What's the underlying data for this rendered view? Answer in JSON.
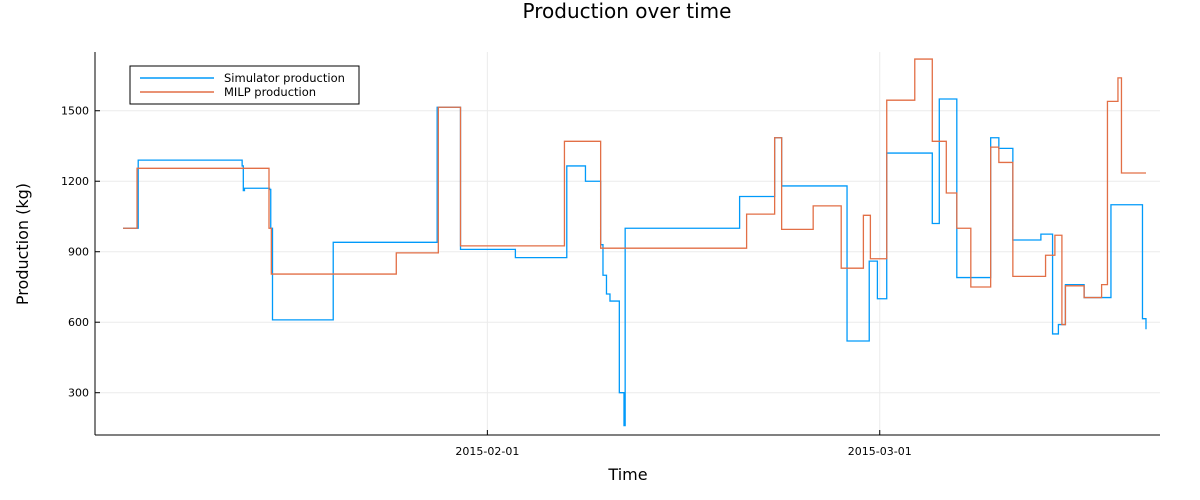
{
  "chart_data": {
    "type": "line",
    "title": "Production over time",
    "xlabel": "Time",
    "ylabel": "Production (kg)",
    "x_ticks": [
      {
        "date": "2015-02-01",
        "label": "2015-02-01"
      },
      {
        "date": "2015-03-01",
        "label": "2015-03-01"
      }
    ],
    "y_ticks": [
      300,
      600,
      900,
      1200,
      1500
    ],
    "xlim": [
      "2015-01-04",
      "2015-03-21"
    ],
    "ylim": [
      120,
      1750
    ],
    "grid": true,
    "legend": "top-left",
    "series": [
      {
        "name": "Simulator production",
        "color": "#009AFA",
        "step": true,
        "points": [
          [
            "2015-01-06T00:00",
            1000
          ],
          [
            "2015-01-07T02:00",
            1290
          ],
          [
            "2015-01-14T12:00",
            1265
          ],
          [
            "2015-01-14T14:00",
            1160
          ],
          [
            "2015-01-14T16:00",
            1170
          ],
          [
            "2015-01-16T11:00",
            1165
          ],
          [
            "2015-01-16T13:00",
            1000
          ],
          [
            "2015-01-16T16:00",
            610
          ],
          [
            "2015-01-21T00:00",
            940
          ],
          [
            "2015-01-28T10:00",
            1515
          ],
          [
            "2015-01-30T02:00",
            910
          ],
          [
            "2015-02-03T00:00",
            875
          ],
          [
            "2015-02-06T16:00",
            1265
          ],
          [
            "2015-02-08T00:00",
            1200
          ],
          [
            "2015-02-09T02:00",
            930
          ],
          [
            "2015-02-09T06:00",
            800
          ],
          [
            "2015-02-09T12:00",
            720
          ],
          [
            "2015-02-09T18:00",
            690
          ],
          [
            "2015-02-10T10:00",
            300
          ],
          [
            "2015-02-10T18:00",
            160
          ],
          [
            "2015-02-10T20:00",
            1000
          ],
          [
            "2015-02-19T00:00",
            1135
          ],
          [
            "2015-02-21T12:00",
            1385
          ],
          [
            "2015-02-22T00:00",
            1180
          ],
          [
            "2015-02-26T16:00",
            520
          ],
          [
            "2015-02-28T06:00",
            860
          ],
          [
            "2015-02-28T20:00",
            700
          ],
          [
            "2015-03-01T12:00",
            1320
          ],
          [
            "2015-03-04T18:00",
            1020
          ],
          [
            "2015-03-05T06:00",
            1550
          ],
          [
            "2015-03-06T12:00",
            790
          ],
          [
            "2015-03-08T22:00",
            1385
          ],
          [
            "2015-03-09T12:00",
            1340
          ],
          [
            "2015-03-10T12:00",
            950
          ],
          [
            "2015-03-12T12:00",
            975
          ],
          [
            "2015-03-13T08:00",
            550
          ],
          [
            "2015-03-13T18:00",
            590
          ],
          [
            "2015-03-14T06:00",
            760
          ],
          [
            "2015-03-15T14:00",
            705
          ],
          [
            "2015-03-17T12:00",
            1100
          ],
          [
            "2015-03-19T18:00",
            615
          ],
          [
            "2015-03-20T00:00",
            570
          ]
        ]
      },
      {
        "name": "MILP production",
        "color": "#E26F46",
        "step": true,
        "points": [
          [
            "2015-01-06T00:00",
            1000
          ],
          [
            "2015-01-07T00:00",
            1255
          ],
          [
            "2015-01-16T10:00",
            1000
          ],
          [
            "2015-01-16T14:00",
            805
          ],
          [
            "2015-01-25T12:00",
            895
          ],
          [
            "2015-01-28T12:00",
            1515
          ],
          [
            "2015-01-30T02:00",
            925
          ],
          [
            "2015-02-06T12:00",
            1370
          ],
          [
            "2015-02-09T02:00",
            915
          ],
          [
            "2015-02-19T12:00",
            1060
          ],
          [
            "2015-02-21T12:00",
            1385
          ],
          [
            "2015-02-22T00:00",
            995
          ],
          [
            "2015-02-24T06:00",
            1095
          ],
          [
            "2015-02-26T06:00",
            830
          ],
          [
            "2015-02-27T20:00",
            1055
          ],
          [
            "2015-02-28T08:00",
            870
          ],
          [
            "2015-03-01T12:00",
            1545
          ],
          [
            "2015-03-03T12:00",
            1720
          ],
          [
            "2015-03-04T18:00",
            1370
          ],
          [
            "2015-03-05T18:00",
            1150
          ],
          [
            "2015-03-06T12:00",
            1000
          ],
          [
            "2015-03-07T12:00",
            750
          ],
          [
            "2015-03-08T22:00",
            1345
          ],
          [
            "2015-03-09T12:00",
            1280
          ],
          [
            "2015-03-10T12:00",
            795
          ],
          [
            "2015-03-12T20:00",
            885
          ],
          [
            "2015-03-13T12:00",
            970
          ],
          [
            "2015-03-14T00:00",
            590
          ],
          [
            "2015-03-14T06:00",
            755
          ],
          [
            "2015-03-15T14:00",
            705
          ],
          [
            "2015-03-16T20:00",
            760
          ],
          [
            "2015-03-17T06:00",
            1540
          ],
          [
            "2015-03-18T00:00",
            1640
          ],
          [
            "2015-03-18T06:00",
            1235
          ],
          [
            "2015-03-20T00:00",
            1235
          ]
        ]
      }
    ]
  }
}
